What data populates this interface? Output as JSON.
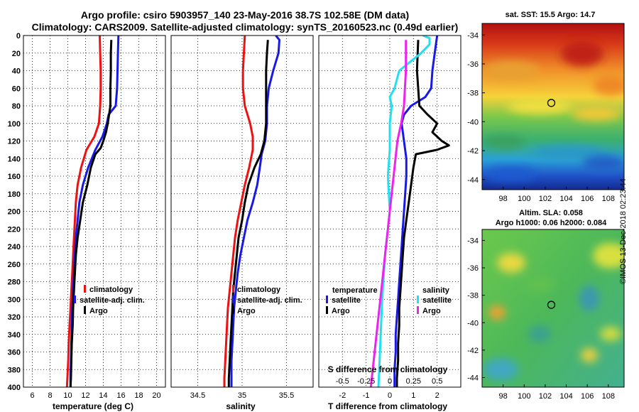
{
  "header": {
    "title_line1": "Argo profile: csiro 5903957_140 23-May-2016 38.7S 102.58E (DM data)",
    "title_line2": "Climatology: CARS2009. Satellite-adjusted climatology: synTS_20160523.nc (0.49d earlier)"
  },
  "colors": {
    "climatology": "#ee1111",
    "satellite": "#1818e8",
    "argo": "#000000",
    "sat_salinity": "#22e0f0",
    "argo_salinity": "#ee22ee"
  },
  "chart_data": [
    {
      "type": "line",
      "name": "temperature",
      "xlabel": "temperature (deg C)",
      "ylabel": "depth",
      "xlim": [
        5,
        21
      ],
      "ylim": [
        400,
        0
      ],
      "xticks": [
        6,
        8,
        10,
        12,
        14,
        16,
        18,
        20
      ],
      "yticks": [
        0,
        20,
        40,
        60,
        80,
        100,
        120,
        140,
        160,
        180,
        200,
        220,
        240,
        260,
        280,
        300,
        320,
        340,
        360,
        380,
        400
      ],
      "legend": [
        "climatology",
        "satellite-adj. clim.",
        "Argo"
      ],
      "legend_position": "bottom-right",
      "series": [
        {
          "name": "climatology",
          "color": "#ee1111",
          "depth": [
            0,
            20,
            40,
            60,
            80,
            100,
            115,
            130,
            150,
            170,
            190,
            210,
            230,
            250,
            270,
            290,
            310,
            330,
            350,
            370,
            390,
            400
          ],
          "values": [
            13.6,
            13.65,
            13.7,
            13.7,
            13.65,
            13.5,
            13.0,
            12.1,
            11.5,
            11.1,
            10.9,
            10.8,
            10.7,
            10.6,
            10.5,
            10.4,
            10.3,
            10.2,
            10.1,
            10.05,
            9.95,
            9.9
          ]
        },
        {
          "name": "satellite-adj. clim.",
          "color": "#1818e8",
          "depth": [
            0,
            20,
            40,
            60,
            80,
            90,
            100,
            115,
            130,
            150,
            170,
            190,
            210,
            230,
            250,
            270,
            290,
            310,
            330,
            350,
            370,
            390,
            400
          ],
          "values": [
            15.7,
            15.65,
            15.6,
            15.55,
            15.4,
            14.6,
            14.4,
            13.9,
            13.1,
            12.3,
            11.7,
            11.3,
            11.1,
            10.9,
            10.8,
            10.7,
            10.6,
            10.5,
            10.45,
            10.4,
            10.35,
            10.3,
            10.3
          ]
        },
        {
          "name": "Argo",
          "color": "#000000",
          "depth": [
            5,
            20,
            40,
            60,
            80,
            100,
            110,
            120,
            128,
            135,
            150,
            170,
            190,
            210,
            230,
            250,
            270,
            290,
            310,
            330,
            350,
            370,
            390,
            400
          ],
          "values": [
            14.9,
            14.85,
            14.85,
            14.8,
            14.8,
            14.5,
            14.3,
            14.0,
            13.7,
            13.1,
            12.6,
            12.2,
            11.7,
            11.4,
            11.1,
            10.9,
            10.8,
            10.7,
            10.6,
            10.55,
            10.45,
            10.4,
            10.35,
            10.3
          ]
        }
      ]
    },
    {
      "type": "line",
      "name": "salinity",
      "xlabel": "salinity",
      "ylabel": "depth",
      "xlim": [
        34.2,
        35.8
      ],
      "ylim": [
        400,
        0
      ],
      "xticks": [
        34.5,
        35,
        35.5
      ],
      "legend": [
        "climatology",
        "satellite-adj. clim.",
        "Argo"
      ],
      "legend_position": "bottom-right",
      "series": [
        {
          "name": "climatology",
          "color": "#ee1111",
          "depth": [
            0,
            20,
            40,
            60,
            80,
            100,
            115,
            130,
            150,
            170,
            190,
            210,
            230,
            250,
            270,
            290,
            310,
            330,
            350,
            370,
            390,
            400
          ],
          "values": [
            35.03,
            35.02,
            35.01,
            35.01,
            35.03,
            35.09,
            35.12,
            35.12,
            35.08,
            35.03,
            34.99,
            34.95,
            34.92,
            34.9,
            34.88,
            34.86,
            34.84,
            34.83,
            34.82,
            34.81,
            34.8,
            34.8
          ]
        },
        {
          "name": "satellite-adj. clim.",
          "color": "#1818e8",
          "depth": [
            0,
            5,
            20,
            40,
            60,
            80,
            100,
            120,
            135,
            150,
            170,
            190,
            210,
            230,
            250,
            270,
            290,
            310,
            330,
            350,
            370,
            390,
            400
          ],
          "values": [
            35.38,
            35.42,
            35.41,
            35.35,
            35.3,
            35.28,
            35.28,
            35.26,
            35.22,
            35.2,
            35.17,
            35.12,
            35.06,
            35.02,
            34.98,
            34.95,
            34.93,
            34.91,
            34.9,
            34.89,
            34.88,
            34.88,
            34.88
          ]
        },
        {
          "name": "Argo",
          "color": "#000000",
          "depth": [
            5,
            20,
            40,
            60,
            80,
            100,
            120,
            135,
            150,
            170,
            190,
            210,
            230,
            250,
            270,
            290,
            310,
            330,
            350,
            370,
            390,
            400
          ],
          "values": [
            35.29,
            35.28,
            35.27,
            35.27,
            35.27,
            35.27,
            35.25,
            35.21,
            35.14,
            35.07,
            35.03,
            35.0,
            34.96,
            34.94,
            34.92,
            34.9,
            34.89,
            34.88,
            34.87,
            34.86,
            34.85,
            34.85
          ]
        }
      ]
    },
    {
      "type": "line",
      "name": "difference from climatology",
      "xlabel": "T difference from climatology",
      "xlabel_top": "S difference from climatology",
      "ylabel": "depth",
      "xlim": [
        -3,
        3
      ],
      "xlim_top": [
        -0.75,
        0.75
      ],
      "ylim": [
        400,
        0
      ],
      "xticks": [
        "-2",
        "-1",
        "0",
        "1",
        "2"
      ],
      "xticks_top": [
        "-0.5",
        "-0.25",
        "0",
        "0.25",
        "0.5"
      ],
      "legend_temperature_title": "temperature",
      "legend_salinity_title": "salinity",
      "legend_temperature": [
        "satellite",
        "Argo"
      ],
      "legend_salinity": [
        "satellite",
        "Argo"
      ],
      "series": [
        {
          "name": "temperature satellite",
          "color": "#1818e8",
          "depth": [
            0,
            20,
            40,
            60,
            70,
            80,
            90,
            100,
            120,
            140,
            160,
            180,
            200,
            220,
            240,
            260,
            280,
            300,
            320,
            340,
            360,
            380,
            400
          ],
          "values": [
            2.0,
            1.9,
            1.8,
            1.75,
            1.5,
            0.9,
            0.6,
            0.5,
            0.6,
            0.7,
            0.7,
            0.65,
            0.6,
            0.55,
            0.5,
            0.45,
            0.4,
            0.35,
            0.3,
            0.25,
            0.25,
            0.2,
            0.2
          ]
        },
        {
          "name": "temperature Argo",
          "color": "#000000",
          "depth": [
            5,
            40,
            80,
            90,
            100,
            110,
            120,
            125,
            130,
            135,
            150,
            170,
            190,
            210,
            230,
            250,
            270,
            290,
            310,
            330,
            350,
            370,
            390,
            400
          ],
          "values": [
            1.2,
            1.15,
            1.25,
            1.6,
            2.0,
            1.8,
            2.2,
            2.5,
            2.0,
            1.1,
            1.0,
            0.9,
            0.8,
            0.7,
            0.6,
            0.55,
            0.5,
            0.45,
            0.4,
            0.4,
            0.35,
            0.35,
            0.3,
            0.3
          ]
        },
        {
          "name": "salinity satellite",
          "color": "#22e0f0",
          "depth": [
            0,
            3,
            10,
            20,
            40,
            60,
            70,
            80,
            100,
            130,
            160,
            200,
            250,
            300,
            350,
            400
          ],
          "values": [
            0.35,
            0.42,
            0.42,
            0.33,
            0.1,
            0.05,
            0.0,
            0.02,
            0.0,
            0.0,
            -0.02,
            0.0,
            -0.05,
            -0.08,
            -0.1,
            -0.12
          ]
        },
        {
          "name": "salinity Argo",
          "color": "#ee22ee",
          "depth": [
            5,
            20,
            40,
            60,
            80,
            100,
            120,
            150,
            200,
            250,
            300,
            350,
            400
          ],
          "values": [
            0.17,
            0.17,
            0.17,
            0.16,
            0.15,
            0.12,
            0.08,
            0.05,
            0.0,
            -0.05,
            -0.1,
            -0.15,
            -0.2
          ]
        }
      ]
    },
    {
      "type": "heatmap",
      "name": "sst map",
      "title": "sat. SST: 15.5 Argo: 14.7",
      "xticks": [
        "98",
        "100",
        "102",
        "104",
        "106",
        "108"
      ],
      "yticks": [
        "-34",
        "-36",
        "-38",
        "-40",
        "-42",
        "-44"
      ],
      "marker": {
        "lon": 102.58,
        "lat": -38.7
      }
    },
    {
      "type": "heatmap",
      "name": "sla map",
      "title_line1": "Altim. SLA: 0.058",
      "title_line2": "Argo h1000: 0.06 h2000: 0.084",
      "xticks": [
        "98",
        "100",
        "102",
        "104",
        "106",
        "108"
      ],
      "yticks": [
        "-34",
        "-36",
        "-38",
        "-40",
        "-42",
        "-44"
      ],
      "marker": {
        "lon": 102.58,
        "lat": -38.7
      }
    }
  ],
  "watermark": "©IMOS 13-Dec-2018 02:23:44"
}
